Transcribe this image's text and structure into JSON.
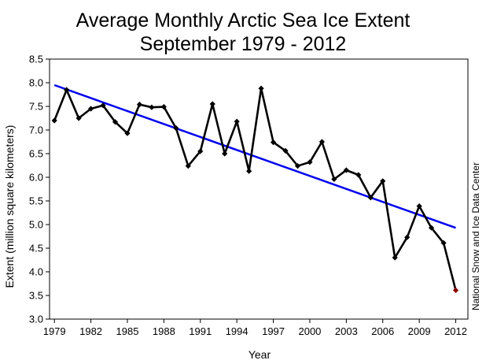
{
  "chart_data": {
    "type": "line",
    "title": [
      "Average Monthly Arctic Sea Ice Extent",
      "September 1979 - 2012"
    ],
    "xlabel": "Year",
    "ylabel": "Extent (million square kilometers)",
    "source": "National Snow and Ice Data Center",
    "x_tick_labels": [
      "1979",
      "1982",
      "1985",
      "1988",
      "1991",
      "1994",
      "1997",
      "2000",
      "2003",
      "2006",
      "2009",
      "2012"
    ],
    "x_ticks": [
      1979,
      1982,
      1985,
      1988,
      1991,
      1994,
      1997,
      2000,
      2003,
      2006,
      2009,
      2012
    ],
    "y_tick_labels": [
      "3.0",
      "3.5",
      "4.0",
      "4.5",
      "5.0",
      "5.5",
      "6.0",
      "6.5",
      "7.0",
      "7.5",
      "8.0",
      "8.5"
    ],
    "y_ticks": [
      3.0,
      3.5,
      4.0,
      4.5,
      5.0,
      5.5,
      6.0,
      6.5,
      7.0,
      7.5,
      8.0,
      8.5
    ],
    "xlim": [
      1978.6,
      2013.0
    ],
    "ylim": [
      3.0,
      8.5
    ],
    "grid": false,
    "series": [
      {
        "color": "#000000",
        "x": [
          1979,
          1980,
          1981,
          1982,
          1983,
          1984,
          1985,
          1986,
          1987,
          1988,
          1989,
          1990,
          1991,
          1992,
          1993,
          1994,
          1995,
          1996,
          1997,
          1998,
          1999,
          2000,
          2001,
          2002,
          2003,
          2004,
          2005,
          2006,
          2007,
          2008,
          2009,
          2010,
          2011,
          2012
        ],
        "values": [
          7.2,
          7.85,
          7.25,
          7.45,
          7.52,
          7.17,
          6.93,
          7.54,
          7.48,
          7.49,
          7.04,
          6.24,
          6.55,
          7.55,
          6.5,
          7.18,
          6.13,
          7.88,
          6.74,
          6.56,
          6.24,
          6.32,
          6.75,
          5.96,
          6.15,
          6.05,
          5.57,
          5.92,
          4.3,
          4.73,
          5.39,
          4.93,
          4.61,
          3.61
        ]
      }
    ],
    "trend": {
      "color": "#0000ee",
      "x": [
        1979,
        2012
      ],
      "values": [
        7.95,
        4.93
      ]
    },
    "highlight_color": "#8b0000"
  }
}
